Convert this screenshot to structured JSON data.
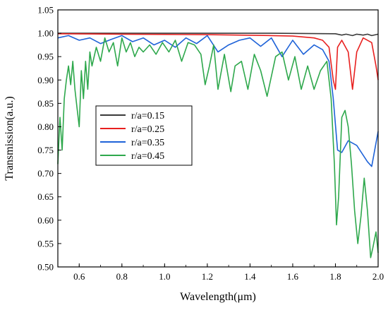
{
  "chart_data": {
    "type": "line",
    "title": "",
    "xlabel": "Wavelength(μm)",
    "ylabel": "Transmission(a.u.)",
    "xlim": [
      0.5,
      2.0
    ],
    "ylim": [
      0.5,
      1.05
    ],
    "xticks": [
      "0.6",
      "0.8",
      "1.0",
      "1.2",
      "1.4",
      "1.6",
      "1.8",
      "2.0"
    ],
    "yticks": [
      "0.50",
      "0.55",
      "0.60",
      "0.65",
      "0.70",
      "0.75",
      "0.80",
      "0.85",
      "0.90",
      "0.95",
      "1.00",
      "1.05"
    ],
    "grid": false,
    "legend": "center-left",
    "series": [
      {
        "name": "r/a=0.15",
        "color": "#3a3a3a",
        "x": [
          0.5,
          1.0,
          1.5,
          1.8,
          1.83,
          1.85,
          1.88,
          1.9,
          1.93,
          1.95,
          1.97,
          2.0
        ],
        "y": [
          1.0,
          1.0,
          1.0,
          0.999,
          0.996,
          0.998,
          0.995,
          0.998,
          0.996,
          0.998,
          0.995,
          0.998
        ]
      },
      {
        "name": "r/a=0.25",
        "color": "#e8201f",
        "x": [
          0.5,
          0.8,
          1.2,
          1.5,
          1.6,
          1.7,
          1.74,
          1.77,
          1.79,
          1.8,
          1.81,
          1.83,
          1.86,
          1.88,
          1.9,
          1.93,
          1.97,
          1.99,
          2.0
        ],
        "y": [
          0.999,
          0.998,
          0.997,
          0.995,
          0.994,
          0.99,
          0.985,
          0.97,
          0.9,
          0.88,
          0.97,
          0.985,
          0.96,
          0.88,
          0.96,
          0.99,
          0.98,
          0.93,
          0.9
        ]
      },
      {
        "name": "r/a=0.35",
        "color": "#1f63d8",
        "x": [
          0.5,
          0.55,
          0.6,
          0.65,
          0.7,
          0.75,
          0.8,
          0.85,
          0.9,
          0.95,
          1.0,
          1.05,
          1.1,
          1.15,
          1.2,
          1.25,
          1.3,
          1.35,
          1.4,
          1.45,
          1.5,
          1.55,
          1.6,
          1.65,
          1.7,
          1.74,
          1.77,
          1.79,
          1.81,
          1.83,
          1.86,
          1.9,
          1.95,
          1.97,
          2.0
        ],
        "y": [
          0.99,
          0.995,
          0.985,
          0.99,
          0.978,
          0.987,
          0.995,
          0.982,
          0.99,
          0.975,
          0.985,
          0.97,
          0.99,
          0.978,
          0.995,
          0.96,
          0.975,
          0.985,
          0.99,
          0.972,
          0.99,
          0.95,
          0.985,
          0.955,
          0.975,
          0.965,
          0.94,
          0.86,
          0.75,
          0.745,
          0.77,
          0.76,
          0.725,
          0.715,
          0.79
        ]
      },
      {
        "name": "r/a=0.45",
        "color": "#2ea84c",
        "x": [
          0.5,
          0.51,
          0.52,
          0.53,
          0.54,
          0.55,
          0.56,
          0.57,
          0.58,
          0.59,
          0.6,
          0.61,
          0.62,
          0.63,
          0.64,
          0.65,
          0.66,
          0.68,
          0.7,
          0.72,
          0.74,
          0.76,
          0.78,
          0.8,
          0.82,
          0.84,
          0.86,
          0.88,
          0.9,
          0.93,
          0.96,
          0.99,
          1.02,
          1.05,
          1.08,
          1.11,
          1.14,
          1.17,
          1.19,
          1.21,
          1.23,
          1.25,
          1.28,
          1.31,
          1.33,
          1.36,
          1.39,
          1.42,
          1.45,
          1.48,
          1.52,
          1.55,
          1.58,
          1.61,
          1.64,
          1.67,
          1.7,
          1.73,
          1.76,
          1.78,
          1.795,
          1.805,
          1.815,
          1.83,
          1.845,
          1.86,
          1.875,
          1.89,
          1.905,
          1.92,
          1.935,
          1.95,
          1.965,
          1.975,
          1.99,
          2.0
        ],
        "y": [
          0.72,
          0.82,
          0.75,
          0.86,
          0.9,
          0.93,
          0.89,
          0.94,
          0.88,
          0.84,
          0.8,
          0.92,
          0.86,
          0.94,
          0.88,
          0.96,
          0.93,
          0.97,
          0.94,
          0.99,
          0.96,
          0.98,
          0.93,
          0.99,
          0.96,
          0.98,
          0.95,
          0.97,
          0.96,
          0.975,
          0.955,
          0.98,
          0.96,
          0.985,
          0.94,
          0.98,
          0.975,
          0.955,
          0.89,
          0.93,
          0.975,
          0.88,
          0.955,
          0.875,
          0.93,
          0.94,
          0.88,
          0.955,
          0.92,
          0.865,
          0.95,
          0.96,
          0.9,
          0.95,
          0.88,
          0.93,
          0.88,
          0.92,
          0.94,
          0.86,
          0.72,
          0.59,
          0.65,
          0.82,
          0.835,
          0.8,
          0.72,
          0.62,
          0.55,
          0.61,
          0.69,
          0.62,
          0.52,
          0.54,
          0.575,
          0.53
        ]
      }
    ]
  }
}
